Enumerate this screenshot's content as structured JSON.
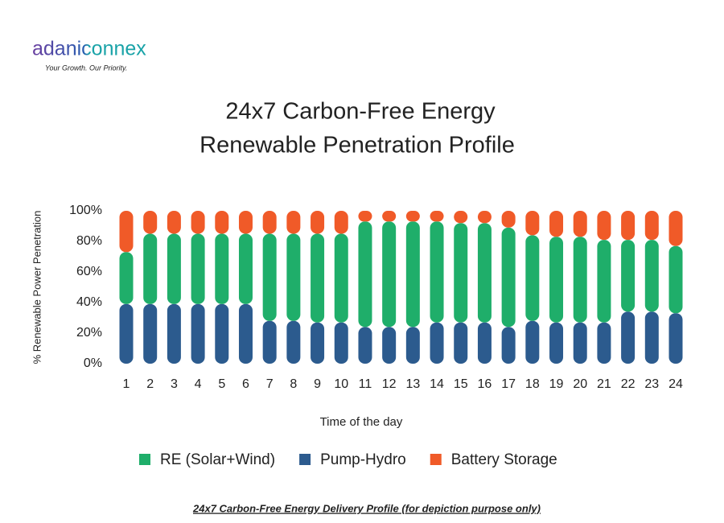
{
  "logo": {
    "name": "adaniconnex",
    "tagline": "Your Growth. Our Priority."
  },
  "chart_data": {
    "type": "stacked-bar",
    "title": "24x7 Carbon-Free Energy",
    "subtitle": "Renewable Penetration Profile",
    "x_label": "Time of the day",
    "y_label": "% Renewable Power Penetration",
    "categories": [
      "1",
      "2",
      "3",
      "4",
      "5",
      "6",
      "7",
      "8",
      "9",
      "10",
      "11",
      "12",
      "13",
      "14",
      "15",
      "16",
      "17",
      "18",
      "19",
      "20",
      "21",
      "22",
      "23",
      "24"
    ],
    "stack_order": [
      "Pump-Hydro",
      "RE (Solar+Wind)",
      "Battery Storage"
    ],
    "series": [
      {
        "name": "RE (Solar+Wind)",
        "color": "#1fae6a",
        "values": [
          34,
          46,
          46,
          46,
          46,
          46,
          57,
          57,
          58,
          58,
          69,
          69,
          69,
          66,
          65,
          65,
          65,
          56,
          56,
          56,
          54,
          47,
          47,
          44
        ]
      },
      {
        "name": "Pump-Hydro",
        "color": "#2c5b8e",
        "values": [
          39,
          39,
          39,
          39,
          39,
          39,
          28,
          28,
          27,
          27,
          24,
          24,
          24,
          27,
          27,
          27,
          24,
          28,
          27,
          27,
          27,
          34,
          34,
          33
        ]
      },
      {
        "name": "Battery Storage",
        "color": "#f05a28",
        "values": [
          27,
          15,
          15,
          15,
          15,
          15,
          15,
          15,
          15,
          15,
          7,
          7,
          7,
          7,
          8,
          8,
          11,
          16,
          17,
          17,
          19,
          19,
          19,
          23
        ]
      }
    ],
    "ylim": [
      0,
      100
    ],
    "yticks": [
      {
        "value": 0,
        "label": "0%"
      },
      {
        "value": 20,
        "label": "20%"
      },
      {
        "value": 40,
        "label": "40%"
      },
      {
        "value": 60,
        "label": "60%"
      },
      {
        "value": 80,
        "label": "80%"
      },
      {
        "value": 100,
        "label": "100%"
      }
    ],
    "legend": "bottom"
  },
  "caption": "24x7 Carbon-Free Energy Delivery Profile (for depiction purpose only)"
}
